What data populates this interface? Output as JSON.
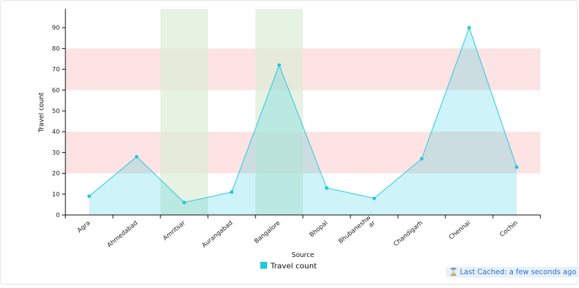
{
  "chart_data": {
    "type": "area",
    "categories": [
      "Agra",
      "Ahmedabad",
      "Amritsar",
      "Aurangabad",
      "Bangalore",
      "Bhopal",
      "Bhubaneshwar",
      "Chandigarh",
      "Chennai",
      "Cochin"
    ],
    "tick_labels": [
      "Agra",
      "Ahmedabad",
      "Amritsar",
      "Aurangabad",
      "Bangalore",
      "Bhopal",
      "Bhubaneshw ar",
      "Chandigarh",
      "Chennai",
      "Cochin"
    ],
    "series": [
      {
        "name": "Travel count",
        "values": [
          9,
          28,
          6,
          11,
          72,
          13,
          8,
          27,
          90,
          23
        ]
      }
    ],
    "xlabel": "Source",
    "ylabel": "Travel count",
    "ylim": [
      0,
      99
    ],
    "yticks": [
      0,
      10,
      20,
      30,
      40,
      50,
      60,
      70,
      80,
      90
    ],
    "y_bands": [
      [
        20,
        40
      ],
      [
        60,
        80
      ]
    ],
    "x_bands": [
      [
        "Ahmedabad",
        "Amritsar"
      ],
      [
        "Aurangabad",
        "Bangalore"
      ]
    ],
    "legend": "bottom-center",
    "colors": {
      "line": "#1ec8de",
      "fill": "#b2ebf2",
      "y_band": "#fde2e2",
      "x_band": "#dcecd6"
    }
  },
  "status": {
    "last_cached": "Last Cached: a few seconds ago",
    "icon": "hourglass-icon"
  }
}
